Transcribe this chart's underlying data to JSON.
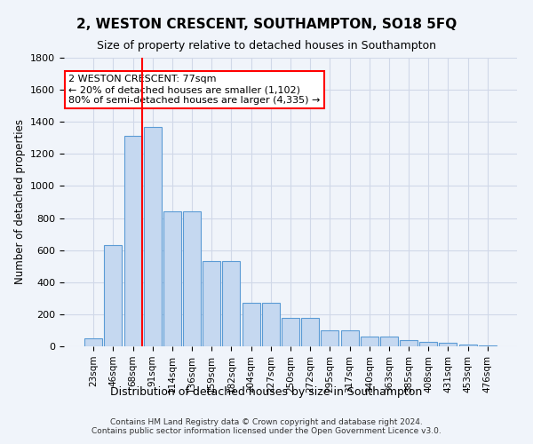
{
  "title": "2, WESTON CRESCENT, SOUTHAMPTON, SO18 5FQ",
  "subtitle": "Size of property relative to detached houses in Southampton",
  "xlabel": "Distribution of detached houses by size in Southampton",
  "ylabel": "Number of detached properties",
  "categories": [
    "23sqm",
    "46sqm",
    "68sqm",
    "91sqm",
    "114sqm",
    "136sqm",
    "159sqm",
    "182sqm",
    "204sqm",
    "227sqm",
    "250sqm",
    "272sqm",
    "295sqm",
    "317sqm",
    "340sqm",
    "363sqm",
    "385sqm",
    "408sqm",
    "431sqm",
    "453sqm",
    "476sqm"
  ],
  "bar_values": [
    50,
    630,
    1310,
    1370,
    840,
    840,
    530,
    530,
    270,
    270,
    180,
    180,
    100,
    100,
    60,
    60,
    40,
    30,
    20,
    10,
    5
  ],
  "bar_color": "#c5d8f0",
  "bar_edge_color": "#5b9bd5",
  "red_line_x": 2.45,
  "annotation_text": "2 WESTON CRESCENT: 77sqm\n← 20% of detached houses are smaller (1,102)\n80% of semi-detached houses are larger (4,335) →",
  "annotation_box_color": "white",
  "annotation_box_edge_color": "red",
  "ylim": [
    0,
    1800
  ],
  "yticks": [
    0,
    200,
    400,
    600,
    800,
    1000,
    1200,
    1400,
    1600,
    1800
  ],
  "grid_color": "#d0d8e8",
  "footnote": "Contains HM Land Registry data © Crown copyright and database right 2024.\nContains public sector information licensed under the Open Government Licence v3.0.",
  "bg_color": "#f0f4fa",
  "plot_bg_color": "#f0f4fa"
}
